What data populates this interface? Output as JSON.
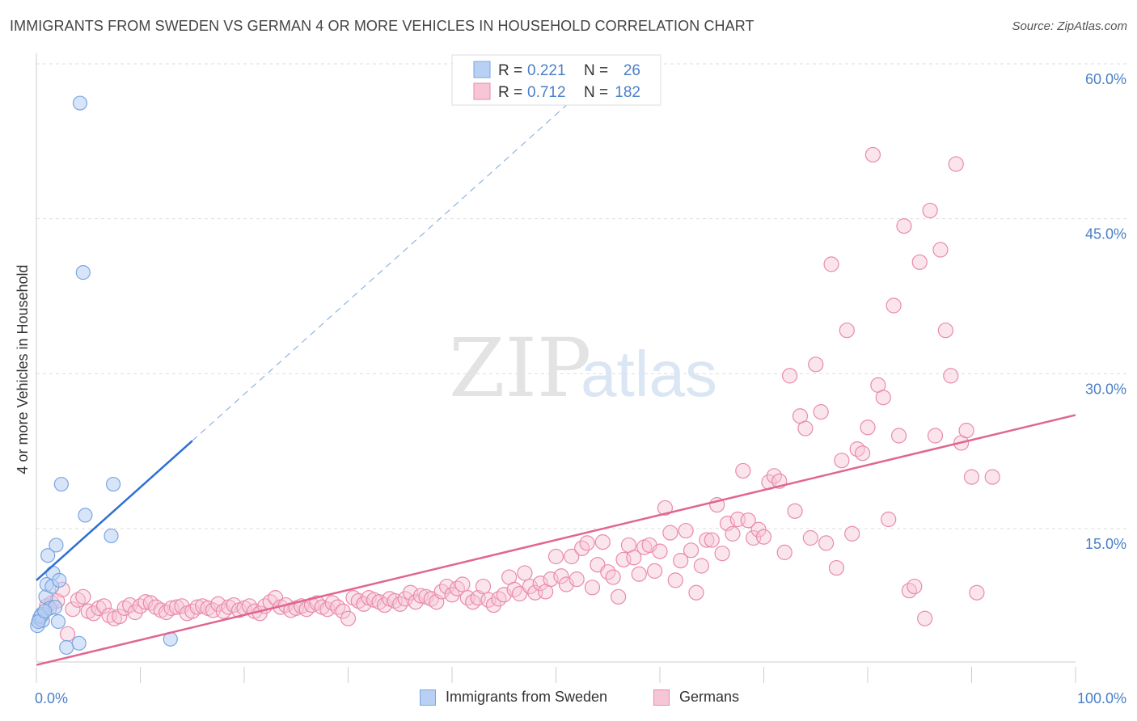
{
  "header": {
    "title": "IMMIGRANTS FROM SWEDEN VS GERMAN 4 OR MORE VEHICLES IN HOUSEHOLD CORRELATION CHART",
    "source": "Source: ZipAtlas.com"
  },
  "watermark": {
    "zip": "ZIP",
    "atlas": "atlas"
  },
  "colors": {
    "blue_fill": "#b8d0f4",
    "blue_stroke": "#7aa6e0",
    "blue_line": "#2d6fd4",
    "pink_fill": "#f7c6d6",
    "pink_stroke": "#e98aaa",
    "pink_line": "#e0668f",
    "tick_label": "#4a7fc8",
    "grid": "#dddddd"
  },
  "legend": [
    {
      "r_label": "R =",
      "r_value": "0.221",
      "n_label": "N =",
      "n_value": "26"
    },
    {
      "r_label": "R =",
      "r_value": "0.712",
      "n_label": "N =",
      "n_value": "182"
    }
  ],
  "chart_data": {
    "type": "scatter",
    "xlabel": "",
    "ylabel": "4 or more Vehicles in Household",
    "xlim": [
      0,
      100
    ],
    "ylim": [
      0,
      62
    ],
    "x_tick_labels": [
      "0.0%",
      "100.0%"
    ],
    "y_ticks": [
      15,
      30,
      45,
      60
    ],
    "y_tick_labels": [
      "15.0%",
      "30.0%",
      "45.0%",
      "60.0%"
    ],
    "grid": "horizontal dashed",
    "legend_position": "top-center",
    "series": [
      {
        "name": "Immigrants from Sweden",
        "color": "blue",
        "points": [
          [
            0.1,
            5.6
          ],
          [
            0.3,
            6.3
          ],
          [
            0.5,
            6.7
          ],
          [
            0.6,
            6.1
          ],
          [
            0.9,
            8.4
          ],
          [
            1.0,
            9.6
          ],
          [
            1.1,
            12.4
          ],
          [
            1.3,
            7.3
          ],
          [
            1.5,
            9.4
          ],
          [
            1.6,
            10.7
          ],
          [
            1.8,
            7.4
          ],
          [
            1.9,
            13.4
          ],
          [
            2.1,
            6.0
          ],
          [
            2.2,
            10.0
          ],
          [
            2.4,
            19.3
          ],
          [
            2.9,
            3.5
          ],
          [
            4.1,
            3.9
          ],
          [
            4.2,
            56.2
          ],
          [
            4.5,
            39.8
          ],
          [
            4.7,
            16.3
          ],
          [
            7.2,
            14.3
          ],
          [
            7.4,
            19.3
          ],
          [
            12.9,
            4.3
          ],
          [
            0.4,
            6.5
          ],
          [
            0.2,
            6.0
          ],
          [
            0.8,
            7.0
          ]
        ],
        "trend": {
          "x": [
            0,
            15
          ],
          "y": [
            10.0,
            23.5
          ]
        },
        "trend_extension": {
          "x": [
            15,
            52
          ],
          "y": [
            23.5,
            56.9
          ]
        }
      },
      {
        "name": "Germans",
        "color": "pink",
        "points": [
          [
            0.5,
            6.6
          ],
          [
            1.0,
            7.5
          ],
          [
            1.5,
            7.8
          ],
          [
            2.0,
            8.0
          ],
          [
            2.5,
            9.1
          ],
          [
            3.0,
            4.8
          ],
          [
            3.5,
            7.2
          ],
          [
            4.0,
            8.1
          ],
          [
            4.5,
            8.4
          ],
          [
            5.0,
            7.0
          ],
          [
            5.5,
            6.8
          ],
          [
            6.0,
            7.3
          ],
          [
            6.5,
            7.5
          ],
          [
            7.0,
            6.6
          ],
          [
            7.5,
            6.3
          ],
          [
            8.0,
            6.5
          ],
          [
            8.5,
            7.3
          ],
          [
            9.0,
            7.6
          ],
          [
            9.5,
            6.9
          ],
          [
            10.0,
            7.5
          ],
          [
            10.5,
            7.9
          ],
          [
            11.0,
            7.8
          ],
          [
            11.5,
            7.4
          ],
          [
            12.0,
            7.1
          ],
          [
            12.5,
            6.9
          ],
          [
            13.0,
            7.3
          ],
          [
            13.5,
            7.4
          ],
          [
            14.0,
            7.5
          ],
          [
            14.5,
            6.8
          ],
          [
            15.0,
            7.0
          ],
          [
            15.5,
            7.4
          ],
          [
            16.0,
            7.5
          ],
          [
            16.5,
            7.3
          ],
          [
            17.0,
            7.1
          ],
          [
            17.5,
            7.7
          ],
          [
            18.0,
            7.0
          ],
          [
            18.5,
            7.4
          ],
          [
            19.0,
            7.6
          ],
          [
            19.5,
            7.1
          ],
          [
            20.0,
            7.3
          ],
          [
            20.5,
            7.5
          ],
          [
            21.0,
            7.0
          ],
          [
            21.5,
            6.8
          ],
          [
            22.0,
            7.5
          ],
          [
            22.5,
            7.9
          ],
          [
            23.0,
            8.3
          ],
          [
            23.5,
            7.4
          ],
          [
            24.0,
            7.6
          ],
          [
            24.5,
            7.1
          ],
          [
            25.0,
            7.3
          ],
          [
            25.5,
            7.5
          ],
          [
            26.0,
            7.2
          ],
          [
            26.5,
            7.6
          ],
          [
            27.0,
            7.8
          ],
          [
            27.5,
            7.4
          ],
          [
            28.0,
            7.2
          ],
          [
            28.5,
            7.8
          ],
          [
            29.0,
            7.4
          ],
          [
            29.5,
            7.0
          ],
          [
            30.0,
            6.3
          ],
          [
            30.5,
            8.3
          ],
          [
            31.0,
            8.0
          ],
          [
            31.5,
            7.7
          ],
          [
            32.0,
            8.3
          ],
          [
            32.5,
            8.1
          ],
          [
            33.0,
            7.9
          ],
          [
            33.5,
            7.6
          ],
          [
            34.0,
            8.2
          ],
          [
            34.5,
            8.0
          ],
          [
            35.0,
            7.7
          ],
          [
            35.5,
            8.2
          ],
          [
            36.0,
            8.8
          ],
          [
            36.5,
            7.9
          ],
          [
            37.0,
            8.5
          ],
          [
            37.5,
            8.4
          ],
          [
            38.0,
            8.2
          ],
          [
            38.5,
            7.9
          ],
          [
            39.0,
            8.9
          ],
          [
            39.5,
            9.4
          ],
          [
            40.0,
            8.6
          ],
          [
            40.5,
            9.2
          ],
          [
            41.0,
            9.6
          ],
          [
            41.5,
            8.3
          ],
          [
            42.0,
            7.9
          ],
          [
            42.5,
            8.3
          ],
          [
            43.0,
            9.4
          ],
          [
            43.5,
            8.1
          ],
          [
            44.0,
            7.6
          ],
          [
            44.5,
            8.2
          ],
          [
            45.0,
            8.6
          ],
          [
            45.5,
            10.3
          ],
          [
            46.0,
            9.1
          ],
          [
            46.5,
            8.7
          ],
          [
            47.0,
            10.7
          ],
          [
            47.5,
            9.4
          ],
          [
            48.0,
            8.8
          ],
          [
            48.5,
            9.7
          ],
          [
            49.0,
            8.9
          ],
          [
            49.5,
            10.1
          ],
          [
            50.0,
            12.3
          ],
          [
            50.5,
            10.4
          ],
          [
            51.0,
            9.6
          ],
          [
            51.5,
            12.3
          ],
          [
            52.0,
            10.1
          ],
          [
            52.5,
            13.1
          ],
          [
            53.0,
            13.6
          ],
          [
            53.5,
            9.3
          ],
          [
            54.0,
            11.5
          ],
          [
            54.5,
            13.7
          ],
          [
            55.0,
            10.8
          ],
          [
            55.5,
            10.3
          ],
          [
            56.0,
            8.4
          ],
          [
            56.5,
            12.0
          ],
          [
            57.0,
            13.4
          ],
          [
            57.5,
            12.2
          ],
          [
            58.0,
            10.6
          ],
          [
            58.5,
            13.2
          ],
          [
            59.0,
            13.4
          ],
          [
            59.5,
            10.9
          ],
          [
            60.0,
            12.8
          ],
          [
            60.5,
            17.0
          ],
          [
            61.0,
            14.6
          ],
          [
            61.5,
            10.0
          ],
          [
            62.0,
            11.9
          ],
          [
            62.5,
            14.8
          ],
          [
            63.0,
            12.9
          ],
          [
            63.5,
            8.8
          ],
          [
            64.0,
            11.4
          ],
          [
            64.5,
            13.9
          ],
          [
            65.0,
            13.9
          ],
          [
            65.5,
            17.3
          ],
          [
            66.0,
            12.6
          ],
          [
            66.5,
            15.5
          ],
          [
            67.0,
            14.5
          ],
          [
            67.5,
            15.9
          ],
          [
            68.0,
            20.6
          ],
          [
            68.5,
            15.8
          ],
          [
            69.0,
            14.1
          ],
          [
            69.5,
            14.9
          ],
          [
            70.0,
            14.2
          ],
          [
            70.5,
            19.5
          ],
          [
            71.0,
            20.1
          ],
          [
            71.5,
            19.6
          ],
          [
            72.0,
            12.7
          ],
          [
            72.5,
            29.8
          ],
          [
            73.0,
            16.7
          ],
          [
            73.5,
            25.9
          ],
          [
            74.0,
            24.7
          ],
          [
            74.5,
            14.1
          ],
          [
            75.0,
            30.9
          ],
          [
            75.5,
            26.3
          ],
          [
            76.0,
            13.6
          ],
          [
            76.5,
            40.6
          ],
          [
            77.0,
            11.2
          ],
          [
            77.5,
            21.6
          ],
          [
            78.0,
            34.2
          ],
          [
            78.5,
            14.5
          ],
          [
            79.0,
            22.7
          ],
          [
            79.5,
            22.3
          ],
          [
            80.0,
            24.8
          ],
          [
            80.5,
            51.2
          ],
          [
            81.0,
            28.9
          ],
          [
            81.5,
            27.7
          ],
          [
            82.0,
            15.9
          ],
          [
            82.5,
            36.6
          ],
          [
            83.0,
            24.0
          ],
          [
            83.5,
            44.3
          ],
          [
            84.0,
            9.0
          ],
          [
            84.5,
            9.4
          ],
          [
            85.0,
            40.8
          ],
          [
            85.5,
            6.3
          ],
          [
            86.0,
            45.8
          ],
          [
            86.5,
            24.0
          ],
          [
            87.0,
            42.0
          ],
          [
            87.5,
            34.2
          ],
          [
            88.0,
            29.8
          ],
          [
            88.5,
            50.3
          ],
          [
            89.0,
            23.3
          ],
          [
            89.5,
            24.5
          ],
          [
            90.0,
            20.0
          ],
          [
            90.5,
            8.8
          ],
          [
            92.0,
            20.0
          ]
        ],
        "trend": {
          "x": [
            0,
            100
          ],
          "y": [
            1.8,
            26.0
          ]
        }
      }
    ]
  },
  "bottom_legend": [
    "Immigrants from Sweden",
    "Germans"
  ]
}
